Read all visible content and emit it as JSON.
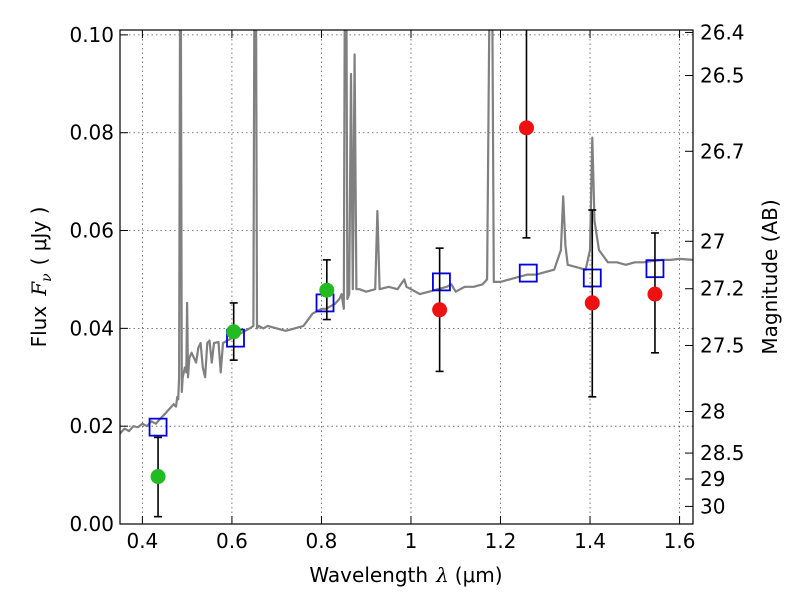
{
  "chart_data": {
    "type": "scatter",
    "xlabel_prefix": "Wavelength",
    "xlabel_symbol": "λ",
    "xlabel_unit": "(μm)",
    "ylabel_prefix": "Flux",
    "ylabel_symbol": "F",
    "ylabel_subscript": "ν",
    "ylabel_unit": "( μJy )",
    "y2label": "Magnitude (AB)",
    "xlim": [
      0.35,
      1.63
    ],
    "ylim": [
      0.0,
      0.101
    ],
    "grid": true,
    "x_ticks": [
      0.4,
      0.6,
      0.8,
      1.0,
      1.2,
      1.4,
      1.6
    ],
    "x_tick_labels": [
      "0.4",
      "0.6",
      "0.8",
      "1",
      "1.2",
      "1.4",
      "1.6"
    ],
    "y_ticks": [
      0.0,
      0.02,
      0.04,
      0.06,
      0.08,
      0.1
    ],
    "y_tick_labels": [
      "0.00",
      "0.02",
      "0.04",
      "0.06",
      "0.08",
      "0.10"
    ],
    "y2_ticks": [
      {
        "label": "26.4",
        "flux": 0.1005
      },
      {
        "label": "26.5",
        "flux": 0.0917
      },
      {
        "label": "26.7",
        "flux": 0.0762
      },
      {
        "label": "27",
        "flux": 0.0578
      },
      {
        "label": "27.2",
        "flux": 0.0481
      },
      {
        "label": "27.5",
        "flux": 0.0365
      },
      {
        "label": "28",
        "flux": 0.023
      },
      {
        "label": "28.5",
        "flux": 0.0145
      },
      {
        "label": "29",
        "flux": 0.0092
      },
      {
        "label": "30",
        "flux": 0.0036
      }
    ],
    "colors": {
      "spectrum": "#808080",
      "model": "#0000dd",
      "green": "#22bb22",
      "red": "#ee1111",
      "errorbar": "#000000"
    },
    "spectrum": [
      [
        0.35,
        0.0185
      ],
      [
        0.36,
        0.0195
      ],
      [
        0.37,
        0.019
      ],
      [
        0.38,
        0.02
      ],
      [
        0.39,
        0.0198
      ],
      [
        0.4,
        0.0205
      ],
      [
        0.41,
        0.02
      ],
      [
        0.42,
        0.021
      ],
      [
        0.43,
        0.0205
      ],
      [
        0.44,
        0.0215
      ],
      [
        0.45,
        0.0225
      ],
      [
        0.46,
        0.0235
      ],
      [
        0.47,
        0.0245
      ],
      [
        0.475,
        0.024
      ],
      [
        0.478,
        0.026
      ],
      [
        0.48,
        0.0255
      ],
      [
        0.482,
        0.03
      ],
      [
        0.484,
        0.103
      ],
      [
        0.486,
        0.103
      ],
      [
        0.488,
        0.027
      ],
      [
        0.49,
        0.03
      ],
      [
        0.495,
        0.032
      ],
      [
        0.498,
        0.031
      ],
      [
        0.5,
        0.0452
      ],
      [
        0.502,
        0.03
      ],
      [
        0.505,
        0.034
      ],
      [
        0.51,
        0.035
      ],
      [
        0.52,
        0.033
      ],
      [
        0.525,
        0.036
      ],
      [
        0.53,
        0.037
      ],
      [
        0.535,
        0.032
      ],
      [
        0.54,
        0.03
      ],
      [
        0.545,
        0.037
      ],
      [
        0.55,
        0.0375
      ],
      [
        0.555,
        0.033
      ],
      [
        0.56,
        0.037
      ],
      [
        0.57,
        0.0372
      ],
      [
        0.575,
        0.031
      ],
      [
        0.58,
        0.037
      ],
      [
        0.59,
        0.0375
      ],
      [
        0.6,
        0.038
      ],
      [
        0.61,
        0.0385
      ],
      [
        0.62,
        0.039
      ],
      [
        0.63,
        0.0395
      ],
      [
        0.64,
        0.04
      ],
      [
        0.648,
        0.0405
      ],
      [
        0.65,
        0.103
      ],
      [
        0.654,
        0.103
      ],
      [
        0.656,
        0.04
      ],
      [
        0.66,
        0.0405
      ],
      [
        0.67,
        0.04
      ],
      [
        0.68,
        0.0405
      ],
      [
        0.7,
        0.04
      ],
      [
        0.72,
        0.0395
      ],
      [
        0.74,
        0.04
      ],
      [
        0.76,
        0.0405
      ],
      [
        0.78,
        0.043
      ],
      [
        0.79,
        0.0435
      ],
      [
        0.8,
        0.044
      ],
      [
        0.81,
        0.044
      ],
      [
        0.82,
        0.0445
      ],
      [
        0.83,
        0.045
      ],
      [
        0.84,
        0.046
      ],
      [
        0.845,
        0.047
      ],
      [
        0.85,
        0.044
      ],
      [
        0.852,
        0.103
      ],
      [
        0.856,
        0.103
      ],
      [
        0.858,
        0.046
      ],
      [
        0.862,
        0.047
      ],
      [
        0.866,
        0.092
      ],
      [
        0.87,
        0.048
      ],
      [
        0.874,
        0.096
      ],
      [
        0.878,
        0.048
      ],
      [
        0.885,
        0.048
      ],
      [
        0.9,
        0.0475
      ],
      [
        0.92,
        0.048
      ],
      [
        0.925,
        0.064
      ],
      [
        0.93,
        0.048
      ],
      [
        0.95,
        0.0485
      ],
      [
        0.97,
        0.048
      ],
      [
        0.985,
        0.05
      ],
      [
        0.99,
        0.0485
      ],
      [
        1.0,
        0.048
      ],
      [
        1.02,
        0.047
      ],
      [
        1.04,
        0.0475
      ],
      [
        1.06,
        0.048
      ],
      [
        1.08,
        0.0485
      ],
      [
        1.09,
        0.049
      ],
      [
        1.1,
        0.0475
      ],
      [
        1.12,
        0.0485
      ],
      [
        1.14,
        0.0485
      ],
      [
        1.16,
        0.049
      ],
      [
        1.17,
        0.05
      ],
      [
        1.175,
        0.103
      ],
      [
        1.182,
        0.103
      ],
      [
        1.185,
        0.0495
      ],
      [
        1.2,
        0.0495
      ],
      [
        1.22,
        0.05
      ],
      [
        1.24,
        0.0505
      ],
      [
        1.26,
        0.051
      ],
      [
        1.28,
        0.051
      ],
      [
        1.3,
        0.0515
      ],
      [
        1.32,
        0.052
      ],
      [
        1.335,
        0.056
      ],
      [
        1.34,
        0.067
      ],
      [
        1.345,
        0.057
      ],
      [
        1.35,
        0.053
      ],
      [
        1.37,
        0.0525
      ],
      [
        1.39,
        0.052
      ],
      [
        1.4,
        0.056
      ],
      [
        1.405,
        0.079
      ],
      [
        1.41,
        0.062
      ],
      [
        1.42,
        0.056
      ],
      [
        1.44,
        0.0535
      ],
      [
        1.46,
        0.0535
      ],
      [
        1.48,
        0.053
      ],
      [
        1.5,
        0.0535
      ],
      [
        1.52,
        0.0535
      ],
      [
        1.54,
        0.0538
      ],
      [
        1.56,
        0.054
      ],
      [
        1.58,
        0.054
      ],
      [
        1.6,
        0.0542
      ],
      [
        1.63,
        0.054
      ]
    ],
    "model_points": [
      {
        "x": 0.435,
        "y": 0.0198
      },
      {
        "x": 0.608,
        "y": 0.038
      },
      {
        "x": 0.808,
        "y": 0.0452
      },
      {
        "x": 1.068,
        "y": 0.0495
      },
      {
        "x": 1.262,
        "y": 0.0513
      },
      {
        "x": 1.405,
        "y": 0.0503
      },
      {
        "x": 1.545,
        "y": 0.0522
      }
    ],
    "green_points": [
      {
        "x": 0.435,
        "y": 0.0097,
        "ylow": 0.0015,
        "yhigh": 0.0177
      },
      {
        "x": 0.604,
        "y": 0.0393,
        "ylow": 0.0335,
        "yhigh": 0.0452
      },
      {
        "x": 0.812,
        "y": 0.0478,
        "ylow": 0.0418,
        "yhigh": 0.054
      }
    ],
    "red_points": [
      {
        "x": 1.064,
        "y": 0.0438,
        "ylow": 0.0312,
        "yhigh": 0.0564
      },
      {
        "x": 1.258,
        "y": 0.081,
        "ylow": 0.0585,
        "yhigh": 0.103
      },
      {
        "x": 1.405,
        "y": 0.0452,
        "ylow": 0.026,
        "yhigh": 0.0642
      },
      {
        "x": 1.545,
        "y": 0.047,
        "ylow": 0.035,
        "yhigh": 0.0595
      }
    ]
  }
}
